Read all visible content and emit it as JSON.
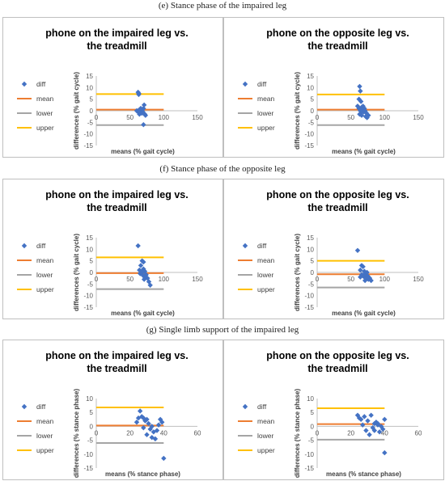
{
  "captions": [
    "(e) Stance phase of the impaired leg",
    "(f) Stance phase of the opposite leg",
    "(g) Single limb support of the impaired leg"
  ],
  "colors": {
    "diff": "#4472C4",
    "mean": "#ED7D31",
    "lower": "#A5A5A5",
    "upper": "#FFC000"
  },
  "chart_data": [
    {
      "type": "scatter",
      "section": "e",
      "title": "phone on the impaired leg vs. the treadmill",
      "xlabel": "means (% gait cycle)",
      "ylabel": "differences (% gait cycle)",
      "xlim": [
        0,
        150
      ],
      "ylim": [
        -15,
        15
      ],
      "xticks": [
        0,
        50,
        100,
        150
      ],
      "yticks": [
        -15,
        -10,
        -5,
        0,
        5,
        10,
        15
      ],
      "legend": [
        "diff",
        "mean",
        "lower",
        "upper"
      ],
      "legend_position": "left",
      "lines": {
        "mean": 0.5,
        "lower": -6.2,
        "upper": 7.2
      },
      "series": [
        {
          "name": "diff",
          "points": [
            [
              62,
              8
            ],
            [
              63,
              7.5
            ],
            [
              63,
              7
            ],
            [
              60,
              0
            ],
            [
              62,
              -0.5
            ],
            [
              64,
              0.5
            ],
            [
              66,
              -1
            ],
            [
              68,
              0
            ],
            [
              70,
              1
            ],
            [
              72,
              -1.5
            ],
            [
              65,
              -1
            ],
            [
              67,
              0.5
            ],
            [
              69,
              -0.5
            ],
            [
              71,
              2.5
            ],
            [
              73,
              -2
            ],
            [
              64,
              -1.5
            ],
            [
              66,
              1
            ],
            [
              68,
              -1
            ],
            [
              70,
              -6
            ]
          ]
        }
      ]
    },
    {
      "type": "scatter",
      "section": "e",
      "title": "phone on the opposite leg vs. the treadmill",
      "xlabel": "means (% gait cycle)",
      "ylabel": "differences (% gait cycle)",
      "xlim": [
        0,
        150
      ],
      "ylim": [
        -15,
        15
      ],
      "xticks": [
        0,
        50,
        100,
        150
      ],
      "yticks": [
        -15,
        -10,
        -5,
        0,
        5,
        10,
        15
      ],
      "legend": [
        "diff",
        "mean",
        "lower",
        "upper"
      ],
      "legend_position": "left",
      "lines": {
        "mean": 0.5,
        "lower": -6.2,
        "upper": 7
      },
      "series": [
        {
          "name": "diff",
          "points": [
            [
              63,
              10.5
            ],
            [
              64,
              8.5
            ],
            [
              62,
              5
            ],
            [
              65,
              4
            ],
            [
              60,
              2
            ],
            [
              66,
              1.5
            ],
            [
              62,
              1
            ],
            [
              68,
              2
            ],
            [
              70,
              1
            ],
            [
              64,
              0
            ],
            [
              67,
              0.5
            ],
            [
              69,
              -0.5
            ],
            [
              71,
              0
            ],
            [
              73,
              -1
            ],
            [
              65,
              -1
            ],
            [
              63,
              -1.5
            ],
            [
              66,
              -2
            ],
            [
              72,
              -2.5
            ],
            [
              74,
              -3
            ],
            [
              76,
              -2
            ]
          ]
        }
      ]
    },
    {
      "type": "scatter",
      "section": "f",
      "title": "phone on the impaired leg vs. the treadmill",
      "xlabel": "means (% gait cycle)",
      "ylabel": "differences (% gait cycle)",
      "xlim": [
        0,
        150
      ],
      "ylim": [
        -15,
        15
      ],
      "xticks": [
        0,
        50,
        100,
        150
      ],
      "yticks": [
        -15,
        -10,
        -5,
        0,
        5,
        10,
        15
      ],
      "legend": [
        "diff",
        "mean",
        "lower",
        "upper"
      ],
      "legend_position": "left",
      "lines": {
        "mean": -0.3,
        "lower": -7.2,
        "upper": 6.5
      },
      "series": [
        {
          "name": "diff",
          "points": [
            [
              62,
              11.5
            ],
            [
              68,
              5
            ],
            [
              70,
              4.5
            ],
            [
              66,
              3
            ],
            [
              64,
              1
            ],
            [
              70,
              1.5
            ],
            [
              72,
              0.5
            ],
            [
              68,
              0
            ],
            [
              66,
              -0.5
            ],
            [
              74,
              -1
            ],
            [
              70,
              -1.5
            ],
            [
              72,
              -2
            ],
            [
              76,
              -2.5
            ],
            [
              65,
              -0.5
            ],
            [
              69,
              0.5
            ],
            [
              71,
              -3
            ],
            [
              73,
              -1
            ],
            [
              78,
              -4
            ],
            [
              80,
              -5.5
            ]
          ]
        }
      ]
    },
    {
      "type": "scatter",
      "section": "f",
      "title": "phone on the opposite leg vs. the treadmill",
      "xlabel": "means (% gait cycle)",
      "ylabel": "differences (% gait cycle)",
      "xlim": [
        0,
        150
      ],
      "ylim": [
        -15,
        15
      ],
      "xticks": [
        0,
        50,
        100,
        150
      ],
      "yticks": [
        -15,
        -10,
        -5,
        0,
        5,
        10,
        15
      ],
      "legend": [
        "diff",
        "mean",
        "lower",
        "upper"
      ],
      "legend_position": "left",
      "lines": {
        "mean": -0.8,
        "lower": -6.5,
        "upper": 5
      },
      "series": [
        {
          "name": "diff",
          "points": [
            [
              60,
              9.5
            ],
            [
              66,
              3
            ],
            [
              68,
              2.5
            ],
            [
              64,
              1
            ],
            [
              70,
              0.5
            ],
            [
              72,
              -0.5
            ],
            [
              66,
              -1
            ],
            [
              68,
              -1.5
            ],
            [
              74,
              0
            ],
            [
              70,
              -2
            ],
            [
              73,
              -2.5
            ],
            [
              76,
              -3
            ],
            [
              64,
              -2
            ],
            [
              69,
              -1
            ],
            [
              71,
              -3.5
            ],
            [
              75,
              -1.5
            ],
            [
              78,
              -2.5
            ],
            [
              80,
              -3.5
            ]
          ]
        }
      ]
    },
    {
      "type": "scatter",
      "section": "g",
      "title": "phone on the impaired leg vs. the treadmill",
      "xlabel": "means (% stance phase)",
      "ylabel": "differences (% stance phase)",
      "xlim": [
        0,
        60
      ],
      "ylim": [
        -15,
        10
      ],
      "xticks": [
        0,
        20,
        40,
        60
      ],
      "yticks": [
        -15,
        -10,
        -5,
        0,
        5,
        10
      ],
      "legend": [
        "diff",
        "mean",
        "lower",
        "upper"
      ],
      "legend_position": "left",
      "lines": {
        "mean": 0.3,
        "lower": -6,
        "upper": 6.8
      },
      "series": [
        {
          "name": "diff",
          "points": [
            [
              26,
              5.5
            ],
            [
              25,
              3
            ],
            [
              27,
              3.5
            ],
            [
              28,
              3
            ],
            [
              24,
              1.5
            ],
            [
              30,
              2.5
            ],
            [
              29,
              2
            ],
            [
              31,
              1
            ],
            [
              33,
              0
            ],
            [
              32,
              -1
            ],
            [
              34,
              -2
            ],
            [
              35,
              -4.5
            ],
            [
              36,
              -1.5
            ],
            [
              38,
              2.5
            ],
            [
              37,
              0.5
            ],
            [
              30,
              -3
            ],
            [
              28,
              -0.5
            ],
            [
              33,
              -4
            ],
            [
              39,
              1.5
            ],
            [
              40,
              -11.5
            ]
          ]
        }
      ]
    },
    {
      "type": "scatter",
      "section": "g",
      "title": "phone on the opposite leg vs. the treadmill",
      "xlabel": "means (% stance phase)",
      "ylabel": "differences (% stance phase)",
      "xlim": [
        0,
        60
      ],
      "ylim": [
        -15,
        10
      ],
      "xticks": [
        0,
        20,
        40,
        60
      ],
      "yticks": [
        -15,
        -10,
        -5,
        0,
        5,
        10
      ],
      "legend": [
        "diff",
        "mean",
        "lower",
        "upper"
      ],
      "legend_position": "left",
      "lines": {
        "mean": 0.8,
        "lower": -4.8,
        "upper": 6.5
      },
      "series": [
        {
          "name": "diff",
          "points": [
            [
              24,
              4
            ],
            [
              25,
              3
            ],
            [
              26,
              2.5
            ],
            [
              28,
              3.5
            ],
            [
              30,
              2
            ],
            [
              32,
              4
            ],
            [
              34,
              1
            ],
            [
              33,
              -0.5
            ],
            [
              35,
              1.5
            ],
            [
              36,
              0.5
            ],
            [
              29,
              -1.5
            ],
            [
              31,
              -3
            ],
            [
              37,
              -2
            ],
            [
              38,
              0
            ],
            [
              27,
              0.5
            ],
            [
              34,
              -1.5
            ],
            [
              36,
              1
            ],
            [
              39,
              -1
            ],
            [
              40,
              2.5
            ],
            [
              40,
              -9.5
            ]
          ]
        }
      ]
    }
  ]
}
